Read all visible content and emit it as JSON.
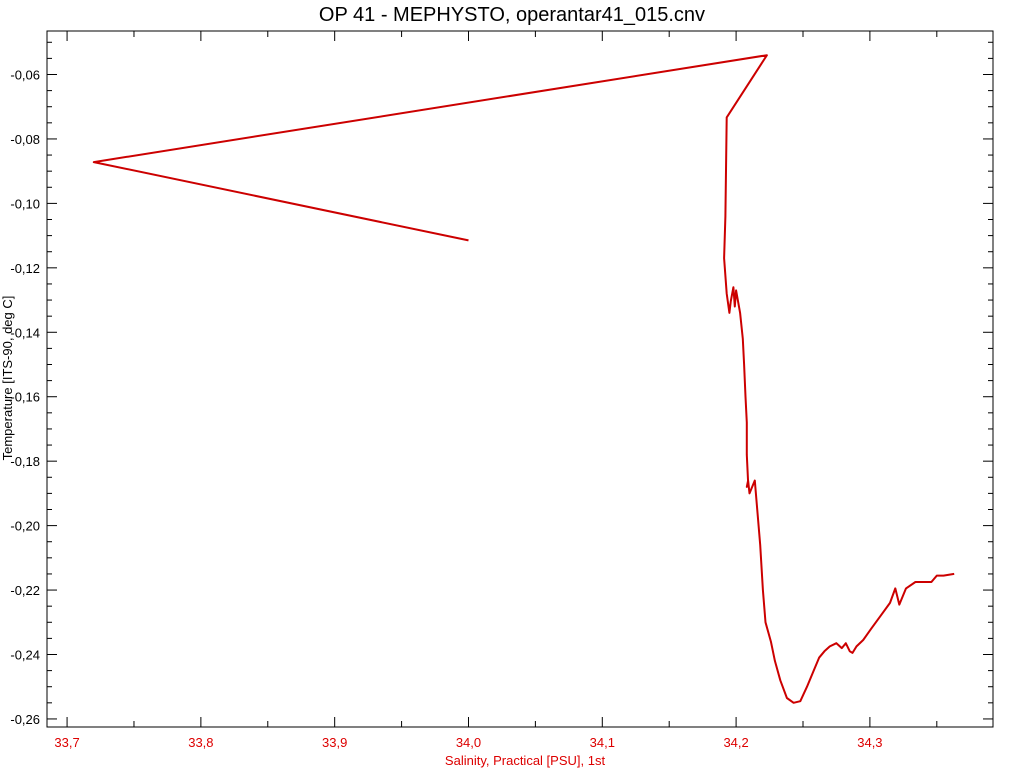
{
  "chart_data": {
    "type": "line",
    "title": "OP 41 - MEPHYSTO, operantar41_015.cnv",
    "xlabel": "Salinity, Practical [PSU], 1st",
    "ylabel": "Temperature [ITS-90, deg C]",
    "xlim": [
      33.685,
      34.392
    ],
    "ylim": [
      -0.2625,
      -0.0465
    ],
    "xtick_labels": [
      "33,7",
      "33,8",
      "33,9",
      "34,0",
      "34,1",
      "34,2",
      "34,3"
    ],
    "ytick_labels": [
      "-0,06",
      "-0,08",
      "-0,10",
      "-0,12",
      "-0,14",
      "-0,16",
      "-0,18",
      "-0,20",
      "-0,22",
      "-0,24",
      "-0,26"
    ],
    "grid": false,
    "legend": "none",
    "colors": {
      "series": "#cc0000",
      "x_axis_text": "#dd0000",
      "y_axis_text": "#000000",
      "frame": "#000000"
    },
    "series": [
      {
        "x": [
          34.0,
          33.72,
          34.223,
          34.193,
          34.192,
          34.191,
          34.193,
          34.195,
          34.196,
          34.198,
          34.199,
          34.2,
          34.203,
          34.205,
          34.206,
          34.207,
          34.208,
          34.208,
          34.209,
          34.208,
          34.209,
          34.21,
          34.214,
          34.216,
          34.218,
          34.22,
          34.222,
          34.226,
          34.229,
          34.233,
          34.238,
          34.243,
          34.248,
          34.253,
          34.258,
          34.262,
          34.266,
          34.27,
          34.275,
          34.279,
          34.282,
          34.285,
          34.287,
          34.29,
          34.295,
          34.301,
          34.308,
          34.315,
          34.319,
          34.322,
          34.327,
          34.334,
          34.34,
          34.346,
          34.35,
          34.355,
          34.363
        ],
        "y": [
          -0.1115,
          -0.0872,
          -0.054,
          -0.0733,
          -0.104,
          -0.117,
          -0.128,
          -0.134,
          -0.1305,
          -0.126,
          -0.132,
          -0.127,
          -0.134,
          -0.142,
          -0.15,
          -0.16,
          -0.168,
          -0.178,
          -0.1865,
          -0.188,
          -0.186,
          -0.19,
          -0.186,
          -0.196,
          -0.206,
          -0.22,
          -0.23,
          -0.236,
          -0.242,
          -0.248,
          -0.2535,
          -0.255,
          -0.2545,
          -0.25,
          -0.245,
          -0.241,
          -0.239,
          -0.2375,
          -0.2365,
          -0.238,
          -0.2365,
          -0.239,
          -0.2395,
          -0.2375,
          -0.2355,
          -0.232,
          -0.228,
          -0.224,
          -0.2195,
          -0.2245,
          -0.2195,
          -0.2175,
          -0.2175,
          -0.2175,
          -0.2155,
          -0.2155,
          -0.215
        ]
      }
    ]
  }
}
